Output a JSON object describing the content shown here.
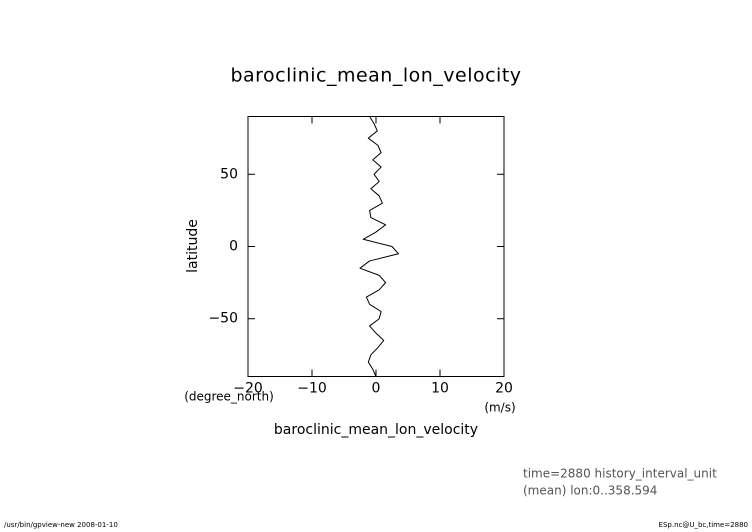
{
  "chart_data": {
    "type": "line",
    "title": "baroclinic_mean_lon_velocity",
    "y_label": "latitude",
    "y_units": "(degree_north)",
    "x_label": "baroclinic_mean_lon_velocity",
    "x_units": "(m/s)",
    "info": [
      "time=2880 history_interval_unit",
      "(mean) lon:0..358.594"
    ],
    "footer_left": "/usr/bin/gpview-new  2008-01-10",
    "footer_right": "ESp.nc@U_bc,time=2880",
    "xlim": [
      -20,
      20
    ],
    "xticks": [
      {
        "value": -20,
        "label": "−20"
      },
      {
        "value": -10,
        "label": "−10"
      },
      0,
      10,
      20
    ],
    "ylim": [
      -90,
      90
    ],
    "yticks": [
      {
        "value": -50,
        "label": "−50"
      },
      0,
      50
    ],
    "color": "#000000",
    "latitude": [
      90,
      85,
      80,
      75,
      70,
      65,
      60,
      55,
      50,
      45,
      40,
      35,
      30,
      25,
      20,
      15,
      10,
      5,
      0,
      -5,
      -10,
      -15,
      -20,
      -25,
      -30,
      -35,
      -40,
      -45,
      -50,
      -55,
      -60,
      -65,
      -70,
      -75,
      -80,
      -85,
      -90
    ],
    "values": [
      -1.0,
      -0.3,
      0.2,
      -1.2,
      0.3,
      0.8,
      -0.5,
      0.8,
      -0.3,
      0.5,
      -0.8,
      0.5,
      1.0,
      -1.0,
      -0.8,
      1.5,
      0.0,
      -2.0,
      2.5,
      3.5,
      -1.0,
      -2.5,
      0.5,
      1.5,
      0.5,
      -1.5,
      -1.0,
      0.8,
      0.5,
      -1.0,
      0.0,
      1.2,
      0.3,
      -0.8,
      -1.2,
      -0.5,
      0.0
    ]
  }
}
